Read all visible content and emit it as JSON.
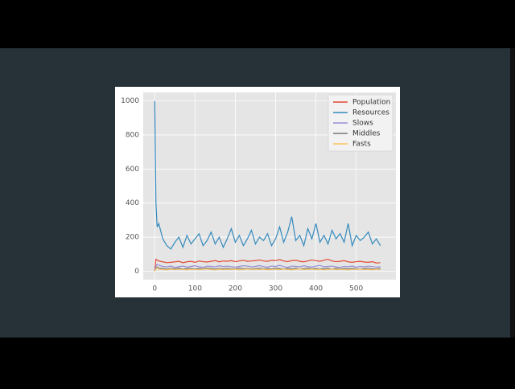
{
  "chart_data": {
    "type": "line",
    "x": [
      0,
      3,
      6,
      10,
      20,
      30,
      40,
      50,
      60,
      70,
      80,
      90,
      100,
      110,
      120,
      130,
      140,
      150,
      160,
      170,
      180,
      190,
      200,
      210,
      220,
      230,
      240,
      250,
      260,
      270,
      280,
      290,
      300,
      310,
      320,
      330,
      340,
      350,
      360,
      370,
      380,
      390,
      400,
      410,
      420,
      430,
      440,
      450,
      460,
      470,
      480,
      490,
      500,
      510,
      520,
      530,
      540,
      550,
      560
    ],
    "series": [
      {
        "name": "Population",
        "color": "#E24A33",
        "values": [
          0,
          70,
          65,
          60,
          55,
          50,
          52,
          55,
          58,
          50,
          55,
          58,
          52,
          60,
          56,
          54,
          58,
          62,
          55,
          60,
          58,
          62,
          56,
          60,
          64,
          58,
          60,
          62,
          66,
          60,
          58,
          64,
          62,
          68,
          60,
          56,
          62,
          64,
          58,
          55,
          60,
          66,
          62,
          58,
          64,
          70,
          60,
          56,
          58,
          62,
          55,
          52,
          56,
          58,
          54,
          52,
          56,
          48,
          50
        ]
      },
      {
        "name": "Resources",
        "color": "#348ABD",
        "values": [
          1000,
          400,
          260,
          280,
          190,
          150,
          130,
          170,
          200,
          140,
          210,
          160,
          190,
          220,
          150,
          180,
          230,
          160,
          200,
          140,
          190,
          250,
          170,
          210,
          150,
          190,
          240,
          160,
          200,
          180,
          220,
          150,
          190,
          260,
          170,
          230,
          320,
          180,
          210,
          150,
          250,
          190,
          280,
          170,
          210,
          160,
          240,
          190,
          220,
          170,
          280,
          150,
          210,
          180,
          200,
          230,
          160,
          190,
          150
        ]
      },
      {
        "name": "Slows",
        "color": "#988ED5",
        "values": [
          0,
          30,
          40,
          35,
          28,
          25,
          30,
          22,
          26,
          30,
          24,
          28,
          32,
          26,
          22,
          30,
          28,
          25,
          32,
          27,
          30,
          26,
          24,
          28,
          32,
          30,
          25,
          28,
          33,
          26,
          24,
          30,
          28,
          35,
          26,
          22,
          30,
          28,
          25,
          32,
          27,
          24,
          30,
          34,
          26,
          28,
          30,
          25,
          22,
          28,
          26,
          30,
          24,
          28,
          25,
          30,
          27,
          24,
          26
        ]
      },
      {
        "name": "Middles",
        "color": "#777777",
        "values": [
          0,
          20,
          25,
          18,
          15,
          12,
          16,
          14,
          18,
          12,
          15,
          17,
          13,
          16,
          14,
          18,
          15,
          12,
          16,
          14,
          17,
          13,
          15,
          18,
          14,
          16,
          12,
          15,
          17,
          14,
          16,
          13,
          18,
          15,
          12,
          16,
          14,
          17,
          13,
          15,
          18,
          14,
          16,
          13,
          15,
          17,
          12,
          16,
          14,
          15,
          13,
          16,
          14,
          12,
          15,
          17,
          13,
          14,
          16
        ]
      },
      {
        "name": "Fasts",
        "color": "#FBC15E",
        "values": [
          0,
          15,
          20,
          12,
          10,
          8,
          12,
          9,
          11,
          10,
          8,
          12,
          10,
          9,
          11,
          13,
          10,
          8,
          12,
          9,
          11,
          10,
          12,
          8,
          10,
          13,
          9,
          11,
          10,
          12,
          8,
          10,
          11,
          9,
          12,
          10,
          8,
          11,
          13,
          9,
          10,
          12,
          9,
          11,
          8,
          10,
          12,
          9,
          11,
          10,
          8,
          11,
          10,
          12,
          9,
          10,
          8,
          11,
          9
        ]
      }
    ],
    "xlim": [
      -28.5,
      598.5
    ],
    "ylim": [
      -50,
      1050
    ],
    "xticks": [
      0,
      100,
      200,
      300,
      400,
      500
    ],
    "yticks": [
      0,
      200,
      400,
      600,
      800,
      1000
    ],
    "grid": true,
    "legend": "upper-right"
  }
}
